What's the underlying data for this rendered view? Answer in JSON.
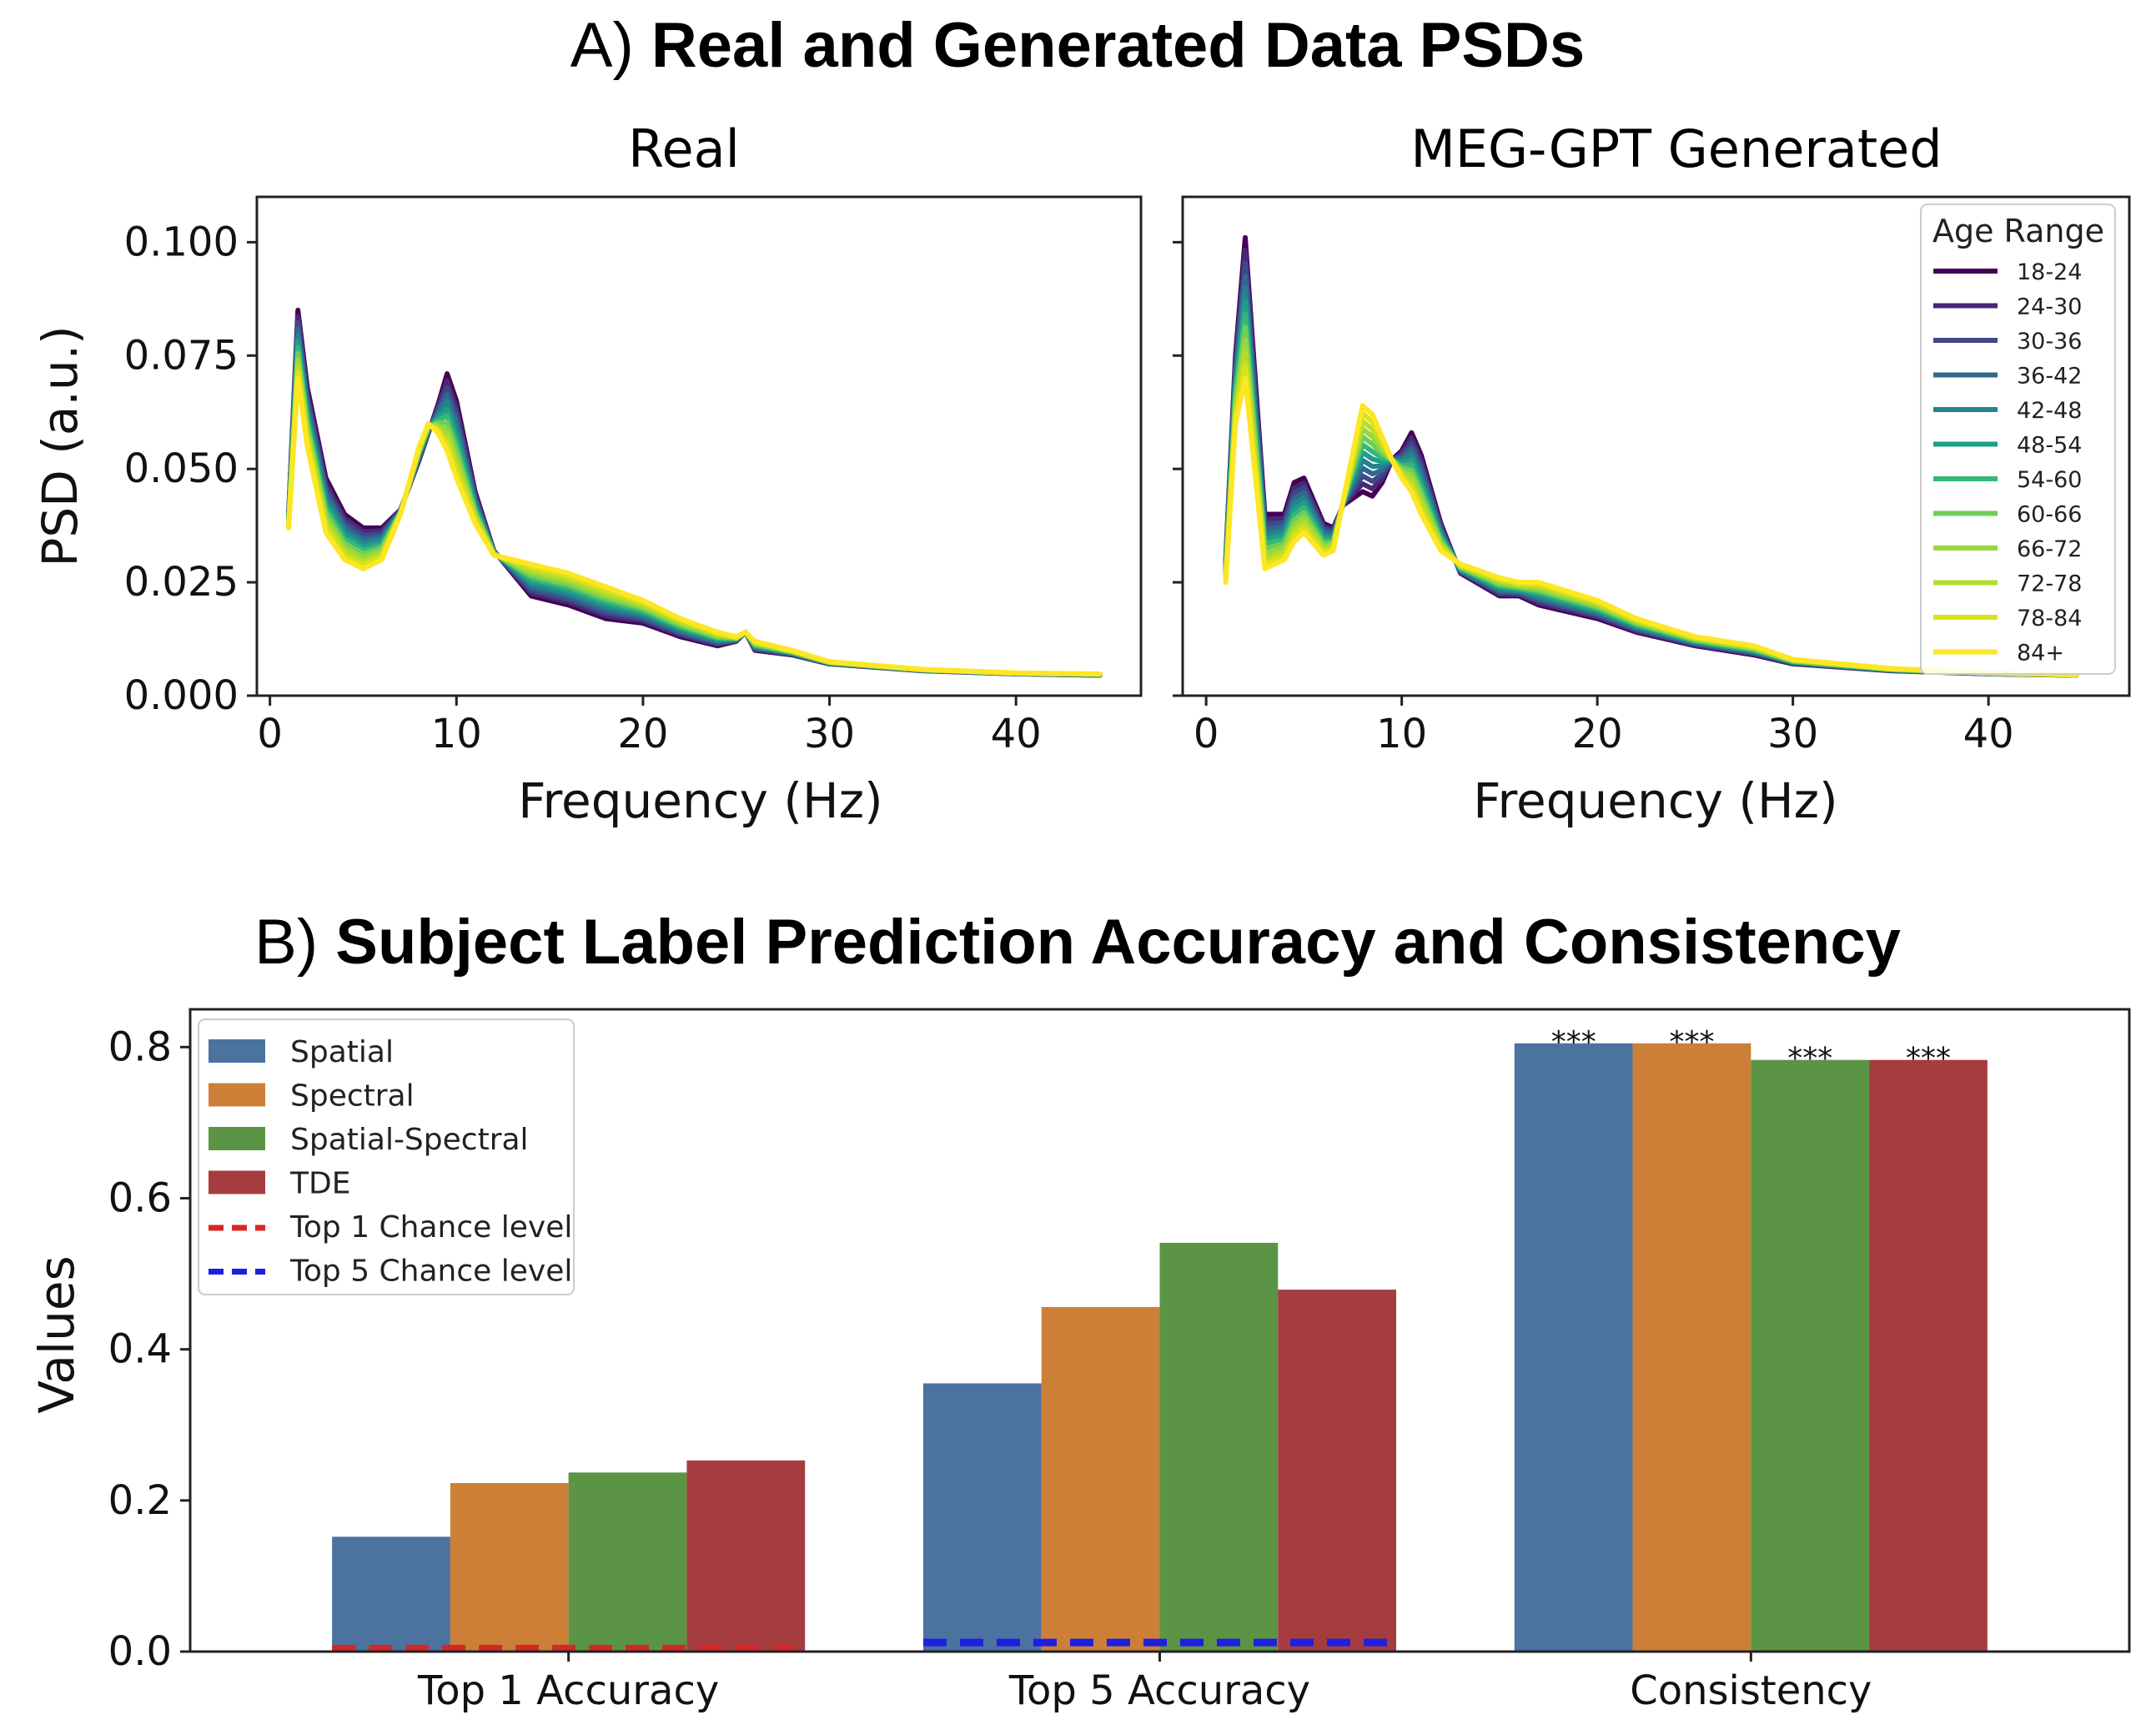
{
  "titles": {
    "a_prefix": "A) ",
    "a_bold": "Real and Generated Data PSDs",
    "b_prefix": "B) ",
    "b_bold": "Subject Label Prediction Accuracy and Consistency"
  },
  "chart_data": [
    {
      "type": "line",
      "title": "Real",
      "xlabel": "Frequency (Hz)",
      "ylabel": "PSD (a.u.)",
      "xlim": [
        -0.7,
        46.7
      ],
      "ylim": [
        0.0,
        0.11
      ],
      "xticks": [
        0,
        10,
        20,
        30,
        40
      ],
      "yticks": [
        0.0,
        0.025,
        0.05,
        0.075,
        0.1
      ],
      "ytick_labels": [
        "0.000",
        "0.025",
        "0.050",
        "0.075",
        "0.100"
      ],
      "series_template": {
        "x": [
          1,
          1.5,
          2,
          3,
          4,
          5,
          6,
          7,
          8,
          8.5,
          9,
          9.5,
          10,
          11,
          12,
          14,
          16,
          18,
          20,
          22,
          24,
          25,
          25.5,
          26,
          28,
          30,
          35,
          40,
          44.5
        ],
        "young": [
          0.04,
          0.085,
          0.068,
          0.048,
          0.04,
          0.037,
          0.037,
          0.041,
          0.052,
          0.058,
          0.064,
          0.071,
          0.065,
          0.045,
          0.032,
          0.022,
          0.02,
          0.017,
          0.016,
          0.013,
          0.011,
          0.012,
          0.014,
          0.01,
          0.009,
          0.007,
          0.0055,
          0.0048,
          0.0045
        ],
        "old": [
          0.037,
          0.07,
          0.055,
          0.036,
          0.03,
          0.028,
          0.03,
          0.04,
          0.055,
          0.06,
          0.058,
          0.054,
          0.048,
          0.038,
          0.031,
          0.029,
          0.027,
          0.024,
          0.021,
          0.017,
          0.014,
          0.013,
          0.014,
          0.012,
          0.01,
          0.0075,
          0.0058,
          0.005,
          0.0048
        ]
      }
    },
    {
      "type": "line",
      "title": "MEG-GPT Generated",
      "xlabel": "Frequency (Hz)",
      "ylabel": "",
      "xlim": [
        -1.2,
        47.2
      ],
      "ylim": [
        0.0,
        0.11
      ],
      "xticks": [
        0,
        10,
        20,
        30,
        40
      ],
      "series_template": {
        "x": [
          1,
          1.5,
          2,
          3,
          4,
          4.5,
          5,
          6,
          6.5,
          7,
          8,
          8.5,
          9,
          9.5,
          10,
          10.5,
          11,
          12,
          13,
          15,
          16,
          17,
          20,
          22,
          25,
          28,
          30,
          35,
          40,
          44.5
        ],
        "young": [
          0.03,
          0.075,
          0.101,
          0.04,
          0.04,
          0.047,
          0.048,
          0.038,
          0.037,
          0.042,
          0.045,
          0.044,
          0.047,
          0.052,
          0.054,
          0.058,
          0.053,
          0.038,
          0.027,
          0.022,
          0.022,
          0.02,
          0.017,
          0.014,
          0.011,
          0.009,
          0.007,
          0.0055,
          0.0048,
          0.0045
        ],
        "old": [
          0.025,
          0.06,
          0.07,
          0.028,
          0.03,
          0.034,
          0.036,
          0.031,
          0.032,
          0.043,
          0.064,
          0.062,
          0.057,
          0.052,
          0.048,
          0.045,
          0.04,
          0.032,
          0.029,
          0.026,
          0.025,
          0.025,
          0.021,
          0.017,
          0.013,
          0.011,
          0.008,
          0.006,
          0.005,
          0.0046
        ]
      },
      "legend": {
        "title": "Age Range",
        "placement": "upper-right",
        "entries": [
          "18-24",
          "24-30",
          "30-36",
          "36-42",
          "42-48",
          "48-54",
          "54-60",
          "60-66",
          "66-72",
          "72-78",
          "78-84",
          "84+"
        ],
        "colors": [
          "#440154",
          "#482878",
          "#3e4989",
          "#31688e",
          "#26828e",
          "#1f9e89",
          "#35b779",
          "#6ece58",
          "#97d83f",
          "#b5de2b",
          "#d8e219",
          "#fde725"
        ]
      }
    },
    {
      "type": "bar",
      "title": "Subject Label Prediction Accuracy and Consistency",
      "ylabel": "Values",
      "ylim": [
        0.0,
        0.85
      ],
      "yticks": [
        0.0,
        0.2,
        0.4,
        0.6,
        0.8
      ],
      "ytick_labels": [
        "0.0",
        "0.2",
        "0.4",
        "0.6",
        "0.8"
      ],
      "categories": [
        "Top 1 Accuracy",
        "Top 5 Accuracy",
        "Consistency"
      ],
      "series": [
        {
          "name": "Spatial",
          "color": "#4c72a0",
          "values": [
            0.152,
            0.355,
            0.805
          ]
        },
        {
          "name": "Spectral",
          "color": "#cc8037",
          "values": [
            0.223,
            0.456,
            0.805
          ]
        },
        {
          "name": "Spatial-Spectral",
          "color": "#5b9444",
          "values": [
            0.237,
            0.541,
            0.783
          ]
        },
        {
          "name": "TDE",
          "color": "#a53d40",
          "values": [
            0.253,
            0.479,
            0.783
          ]
        }
      ],
      "chance_levels": [
        {
          "name": "Top 1 Chance level",
          "color": "#d62728",
          "value": 0.004,
          "category": "Top 1 Accuracy"
        },
        {
          "name": "Top 5 Chance level",
          "color": "#1f1fe0",
          "value": 0.012,
          "category": "Top 5 Accuracy"
        }
      ],
      "annotations": [
        {
          "category": "Consistency",
          "series": "Spatial",
          "text": "***"
        },
        {
          "category": "Consistency",
          "series": "Spectral",
          "text": "***"
        },
        {
          "category": "Consistency",
          "series": "Spatial-Spectral",
          "text": "***"
        },
        {
          "category": "Consistency",
          "series": "TDE",
          "text": "***"
        }
      ],
      "legend_placement": "upper-left"
    }
  ]
}
